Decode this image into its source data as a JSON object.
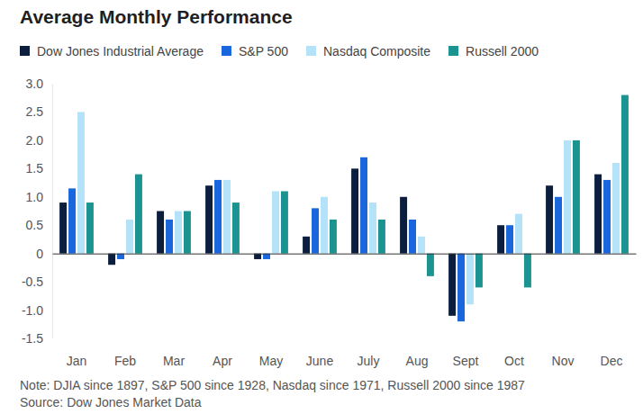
{
  "chart_data": {
    "type": "bar",
    "title": "Average Monthly Performance",
    "categories": [
      "Jan",
      "Feb",
      "Mar",
      "Apr",
      "May",
      "June",
      "July",
      "Aug",
      "Sept",
      "Oct",
      "Nov",
      "Dec"
    ],
    "series": [
      {
        "name": "Dow Jones Industrial Average",
        "color": "#0c1e3e",
        "values": [
          0.9,
          -0.2,
          0.75,
          1.2,
          -0.1,
          0.3,
          1.5,
          1.0,
          -1.1,
          0.5,
          1.2,
          1.4
        ]
      },
      {
        "name": "S&P 500",
        "color": "#1a66dc",
        "values": [
          1.15,
          -0.1,
          0.6,
          1.3,
          -0.1,
          0.8,
          1.7,
          0.6,
          -1.2,
          0.5,
          1.0,
          1.3
        ]
      },
      {
        "name": "Nasdaq Composite",
        "color": "#b4e2f8",
        "values": [
          2.5,
          0.6,
          0.75,
          1.3,
          1.1,
          1.0,
          0.9,
          0.3,
          -0.9,
          0.7,
          2.0,
          1.6
        ]
      },
      {
        "name": "Russell 2000",
        "color": "#1b9390",
        "values": [
          0.9,
          1.4,
          0.75,
          0.9,
          1.1,
          0.6,
          0.6,
          -0.4,
          -0.6,
          -0.6,
          2.0,
          2.8
        ]
      }
    ],
    "ylim": [
      -1.5,
      3.0
    ],
    "yticks": [
      {
        "value": -1.5,
        "label": "-1.5"
      },
      {
        "value": -1.0,
        "label": "-1.0"
      },
      -0.5,
      0,
      0.5,
      {
        "value": 1.0,
        "label": "1.0"
      },
      1.5,
      {
        "value": 2.0,
        "label": "2.0"
      },
      2.5,
      {
        "value": 3.0,
        "label": "3.0"
      }
    ],
    "grid": false,
    "legend": "top",
    "note": "Note: DJIA since 1897, S&P 500 since 1928, Nasdaq since 1971, Russell 2000 since 1987",
    "source": "Source: Dow Jones Market Data"
  }
}
